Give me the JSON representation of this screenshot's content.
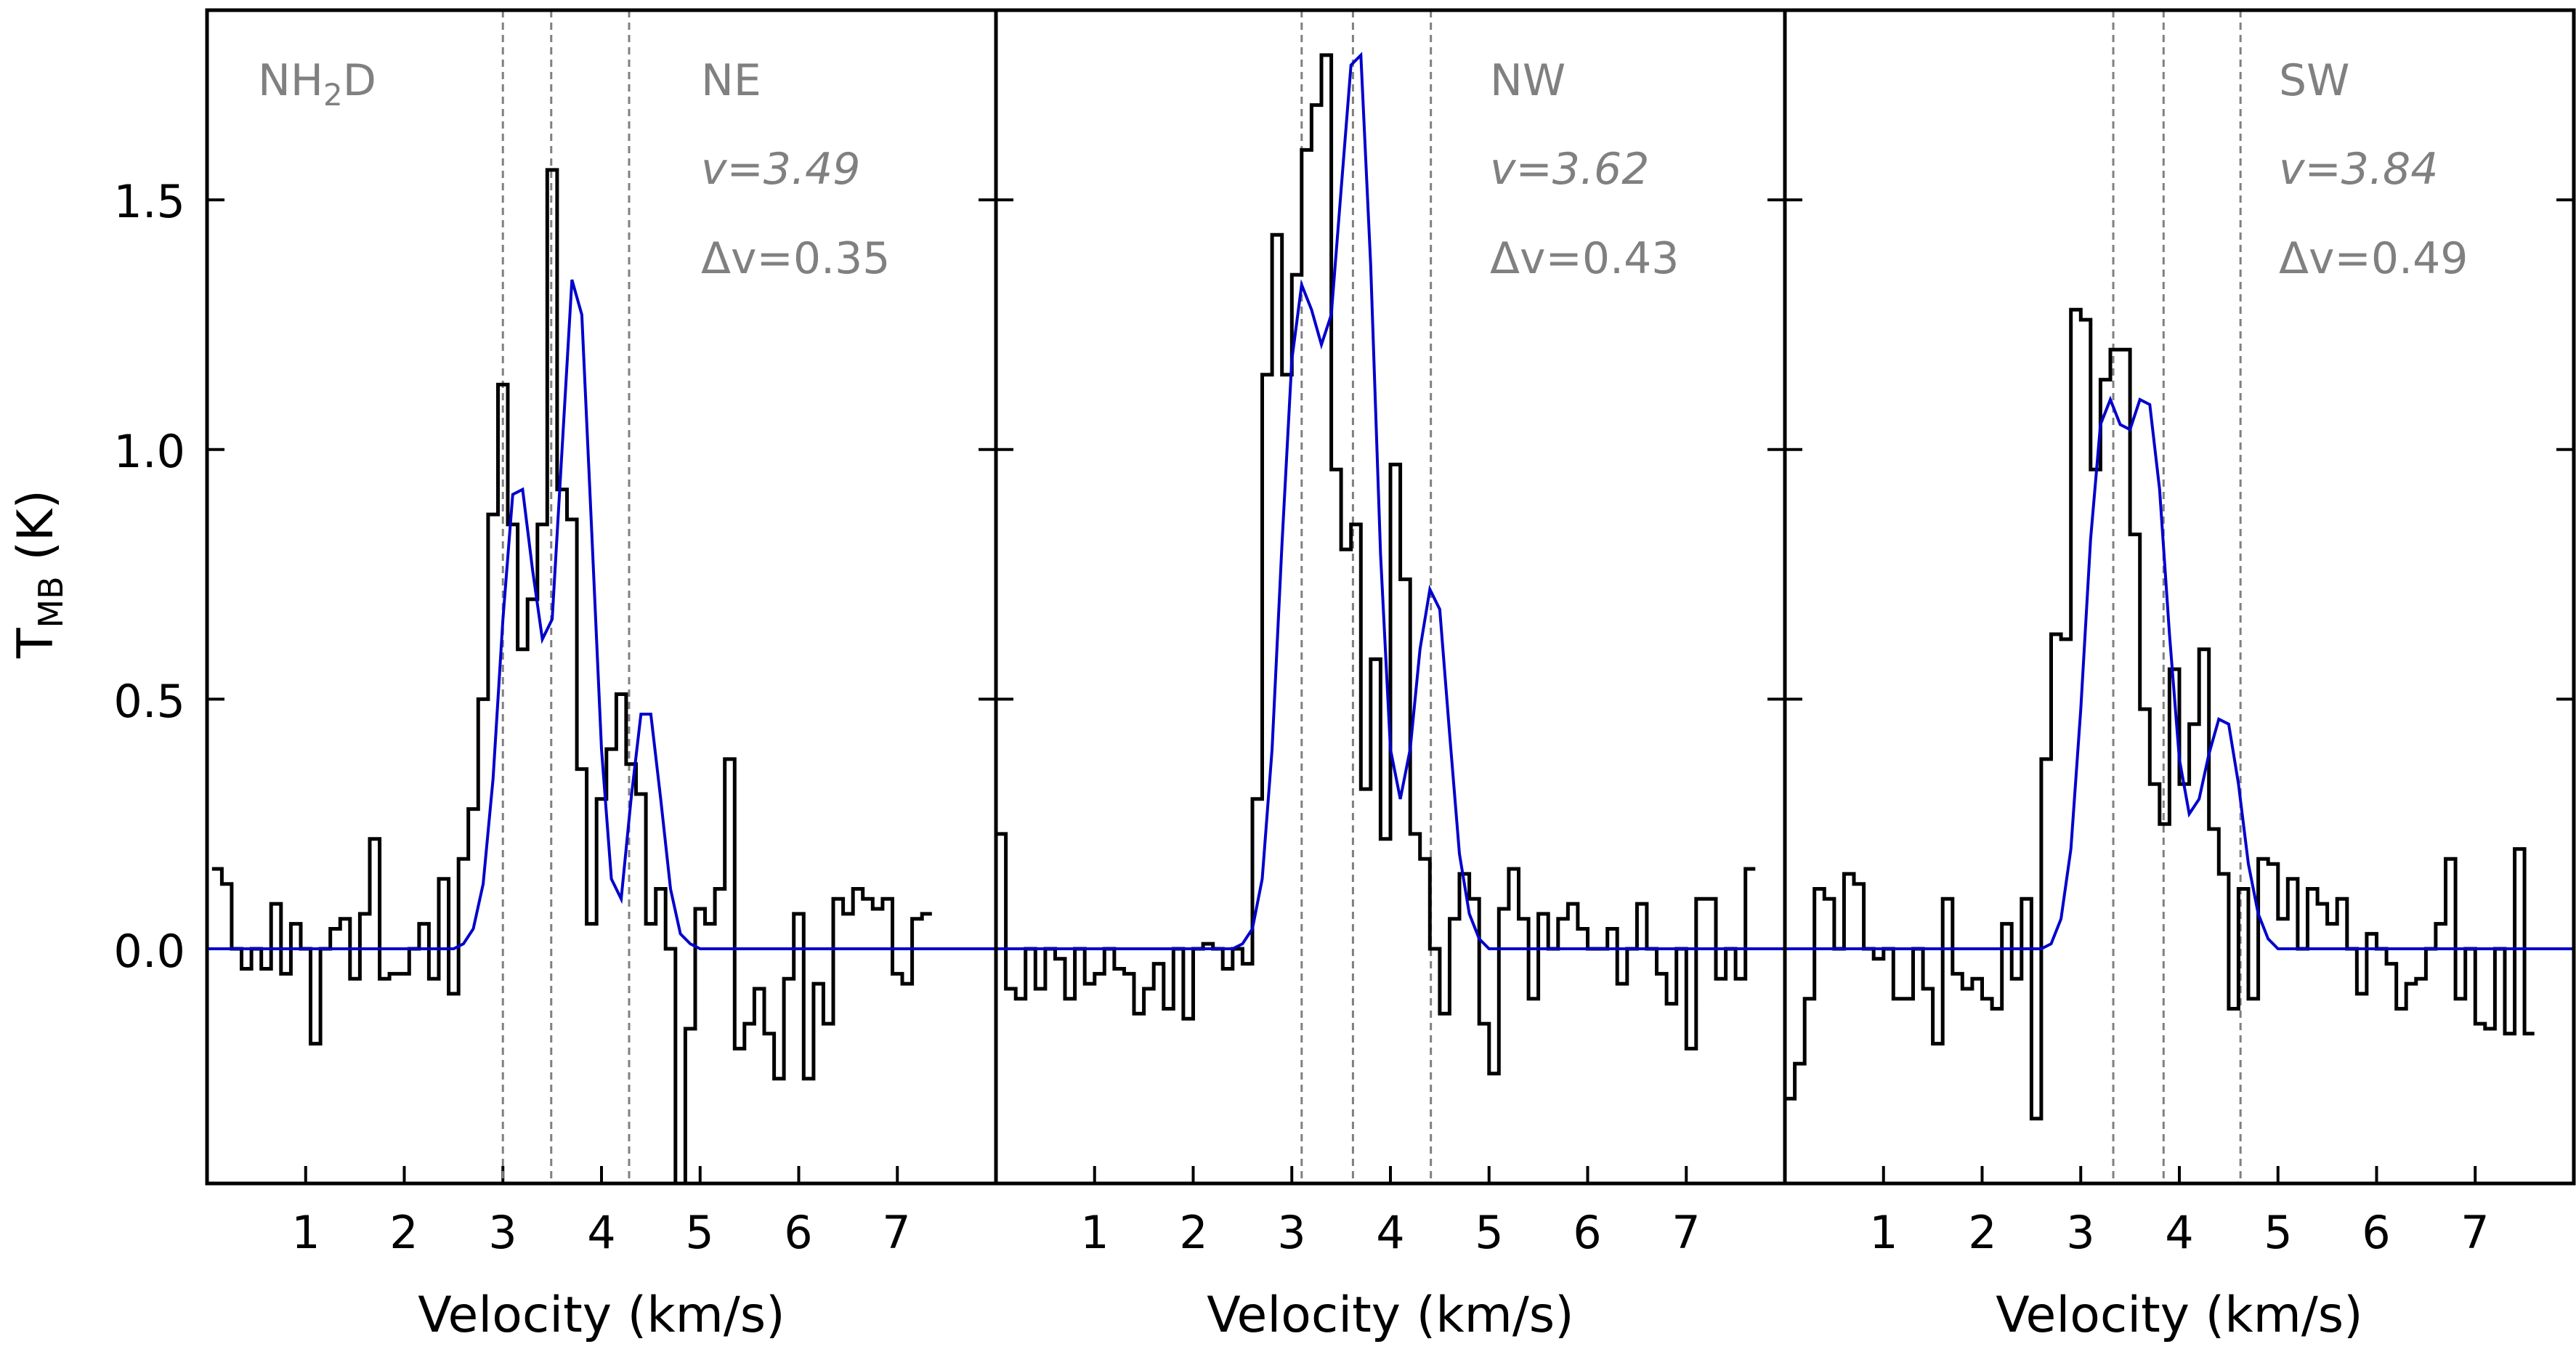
{
  "chart_data": {
    "type": "line",
    "y_axis": {
      "label": "T",
      "label_sub": "MB",
      "label_unit": " (K)",
      "range": [
        -0.47,
        1.88
      ],
      "ticks": [
        0.0,
        0.5,
        1.0,
        1.5
      ],
      "tick_labels": [
        "0.0",
        "0.5",
        "1.0",
        "1.5"
      ]
    },
    "x_axis": {
      "label": "Velocity (km/s)",
      "range": [
        0.0,
        8.0
      ],
      "ticks": [
        1,
        2,
        3,
        4,
        5,
        6,
        7
      ],
      "tick_labels": [
        "1",
        "2",
        "3",
        "4",
        "5",
        "6",
        "7"
      ]
    },
    "colors": {
      "observed": "#000000",
      "fit": "#0000cc",
      "components": "#808080",
      "annot": "#808080"
    },
    "channel_width": 0.1,
    "panels": [
      {
        "id": "ne",
        "region": "NE",
        "molecule_prefix": "NH",
        "molecule_sub": "2",
        "molecule_suffix": "D",
        "v_label": "v=3.49",
        "dv_label": "Δv=0.35",
        "v": 3.49,
        "dv": 0.35,
        "components": [
          3.0,
          3.49,
          4.28
        ],
        "fit_amplitudes": [
          0.9,
          1.36,
          0.48
        ],
        "observed_start": 0.05,
        "observed": [
          0.16,
          0.13,
          0.0,
          -0.04,
          0.0,
          -0.04,
          0.09,
          -0.05,
          0.05,
          0.0,
          -0.19,
          0.0,
          0.04,
          0.06,
          -0.06,
          0.07,
          0.22,
          -0.06,
          -0.05,
          -0.05,
          0.0,
          0.05,
          -0.06,
          0.14,
          -0.09,
          0.18,
          0.28,
          0.5,
          0.87,
          1.13,
          0.85,
          0.6,
          0.7,
          0.85,
          1.56,
          0.92,
          0.86,
          0.36,
          0.05,
          0.3,
          0.4,
          0.51,
          0.37,
          0.31,
          0.05,
          0.12,
          0.0,
          -0.47,
          -0.16,
          0.08,
          0.05,
          0.12,
          0.38,
          -0.2,
          -0.15,
          -0.08,
          -0.17,
          -0.26,
          -0.06,
          0.07,
          -0.26,
          -0.07,
          -0.15,
          0.1,
          0.07,
          0.12,
          0.1,
          0.08,
          0.1,
          -0.05,
          -0.07,
          0.06,
          0.07
        ],
        "fit_curve": [
          0.0,
          0.0,
          0.0,
          0.0,
          0.0,
          0.0,
          0.0,
          0.0,
          0.0,
          0.0,
          0.0,
          0.0,
          0.0,
          0.0,
          0.0,
          0.0,
          0.0,
          0.0,
          0.0,
          0.0,
          0.0,
          0.0,
          0.0,
          0.0,
          0.0,
          0.0,
          0.01,
          0.04,
          0.13,
          0.34,
          0.66,
          0.91,
          0.92,
          0.76,
          0.62,
          0.66,
          1.0,
          1.34,
          1.27,
          0.84,
          0.4,
          0.14,
          0.1,
          0.3,
          0.47,
          0.47,
          0.3,
          0.12,
          0.03,
          0.01,
          0.0,
          0.0,
          0.0,
          0.0,
          0.0,
          0.0,
          0.0,
          0.0,
          0.0,
          0.0,
          0.0,
          0.0,
          0.0,
          0.0,
          0.0,
          0.0,
          0.0,
          0.0,
          0.0,
          0.0,
          0.0,
          0.0,
          0.0,
          0.0,
          0.0,
          0.0,
          0.0,
          0.0,
          0.0,
          0.0,
          0.0
        ],
        "x_label": "Velocity (km/s)"
      },
      {
        "id": "nw",
        "region": "NW",
        "v_label": "v=3.62",
        "dv_label": "Δv=0.43",
        "v": 3.62,
        "dv": 0.43,
        "components": [
          3.1,
          3.62,
          4.41
        ],
        "fit_amplitudes": [
          1.35,
          1.8,
          0.72
        ],
        "observed_start": 0.0,
        "observed": [
          0.23,
          -0.08,
          -0.1,
          0.0,
          -0.08,
          0.0,
          -0.02,
          -0.1,
          0.0,
          -0.07,
          -0.05,
          0.0,
          -0.04,
          -0.05,
          -0.13,
          -0.08,
          -0.03,
          -0.12,
          0.0,
          -0.14,
          0.0,
          0.01,
          0.0,
          -0.04,
          0.0,
          -0.03,
          0.3,
          1.15,
          1.43,
          1.15,
          1.35,
          1.6,
          1.69,
          1.79,
          0.96,
          0.8,
          0.85,
          0.32,
          0.58,
          0.22,
          0.97,
          0.74,
          0.23,
          0.18,
          0.0,
          -0.13,
          0.06,
          0.15,
          0.1,
          -0.15,
          -0.25,
          0.08,
          0.16,
          0.06,
          -0.1,
          0.07,
          0.0,
          0.06,
          0.09,
          0.04,
          0.0,
          0.0,
          0.04,
          -0.07,
          0.0,
          0.09,
          0.0,
          -0.05,
          -0.11,
          0.0,
          -0.2,
          0.1,
          0.1,
          -0.06,
          0.0,
          -0.06,
          0.16
        ],
        "fit_curve": [
          0.0,
          0.0,
          0.0,
          0.0,
          0.0,
          0.0,
          0.0,
          0.0,
          0.0,
          0.0,
          0.0,
          0.0,
          0.0,
          0.0,
          0.0,
          0.0,
          0.0,
          0.0,
          0.0,
          0.0,
          0.0,
          0.0,
          0.0,
          0.0,
          0.0,
          0.01,
          0.04,
          0.14,
          0.4,
          0.81,
          1.18,
          1.33,
          1.28,
          1.21,
          1.27,
          1.52,
          1.77,
          1.79,
          1.37,
          0.79,
          0.4,
          0.3,
          0.4,
          0.6,
          0.72,
          0.68,
          0.43,
          0.19,
          0.07,
          0.02,
          0.0,
          0.0,
          0.0,
          0.0,
          0.0,
          0.0,
          0.0,
          0.0,
          0.0,
          0.0,
          0.0,
          0.0,
          0.0,
          0.0,
          0.0,
          0.0,
          0.0,
          0.0,
          0.0,
          0.0,
          0.0,
          0.0,
          0.0,
          0.0,
          0.0,
          0.0,
          0.0,
          0.0,
          0.0,
          0.0,
          0.0
        ],
        "x_label": "Velocity (km/s)"
      },
      {
        "id": "sw",
        "region": "SW",
        "v_label": "v=3.84",
        "dv_label": "Δv=0.49",
        "v": 3.84,
        "dv": 0.49,
        "components": [
          3.33,
          3.84,
          4.62
        ],
        "fit_amplitudes": [
          1.05,
          1.12,
          0.46
        ],
        "observed_start": 0.0,
        "observed": [
          -0.3,
          -0.23,
          -0.1,
          0.12,
          0.1,
          0.0,
          0.15,
          0.13,
          0.0,
          -0.02,
          0.0,
          -0.1,
          -0.1,
          0.0,
          -0.08,
          -0.19,
          0.1,
          -0.05,
          -0.08,
          -0.06,
          -0.1,
          -0.12,
          0.05,
          -0.06,
          0.1,
          -0.34,
          0.38,
          0.63,
          0.62,
          1.28,
          1.26,
          0.96,
          1.14,
          1.2,
          1.2,
          0.83,
          0.48,
          0.33,
          0.25,
          0.56,
          0.33,
          0.45,
          0.6,
          0.24,
          0.15,
          -0.12,
          0.12,
          -0.1,
          0.18,
          0.17,
          0.06,
          0.14,
          0.0,
          0.12,
          0.09,
          0.05,
          0.1,
          0.0,
          -0.09,
          0.03,
          0.0,
          -0.03,
          -0.12,
          -0.07,
          -0.06,
          0.0,
          0.05,
          0.18,
          -0.1,
          0.0,
          -0.15,
          -0.16,
          0.0,
          -0.17,
          0.2,
          -0.17
        ],
        "fit_curve": [
          0.0,
          0.0,
          0.0,
          0.0,
          0.0,
          0.0,
          0.0,
          0.0,
          0.0,
          0.0,
          0.0,
          0.0,
          0.0,
          0.0,
          0.0,
          0.0,
          0.0,
          0.0,
          0.0,
          0.0,
          0.0,
          0.0,
          0.0,
          0.0,
          0.0,
          0.0,
          0.0,
          0.01,
          0.06,
          0.2,
          0.48,
          0.82,
          1.05,
          1.1,
          1.05,
          1.04,
          1.1,
          1.09,
          0.92,
          0.63,
          0.38,
          0.27,
          0.3,
          0.39,
          0.46,
          0.45,
          0.33,
          0.17,
          0.07,
          0.02,
          0.0,
          0.0,
          0.0,
          0.0,
          0.0,
          0.0,
          0.0,
          0.0,
          0.0,
          0.0,
          0.0,
          0.0,
          0.0,
          0.0,
          0.0,
          0.0,
          0.0,
          0.0,
          0.0,
          0.0,
          0.0,
          0.0,
          0.0,
          0.0,
          0.0,
          0.0,
          0.0,
          0.0,
          0.0,
          0.0,
          0.0
        ],
        "x_label": "Velocity (km/s)"
      }
    ]
  }
}
